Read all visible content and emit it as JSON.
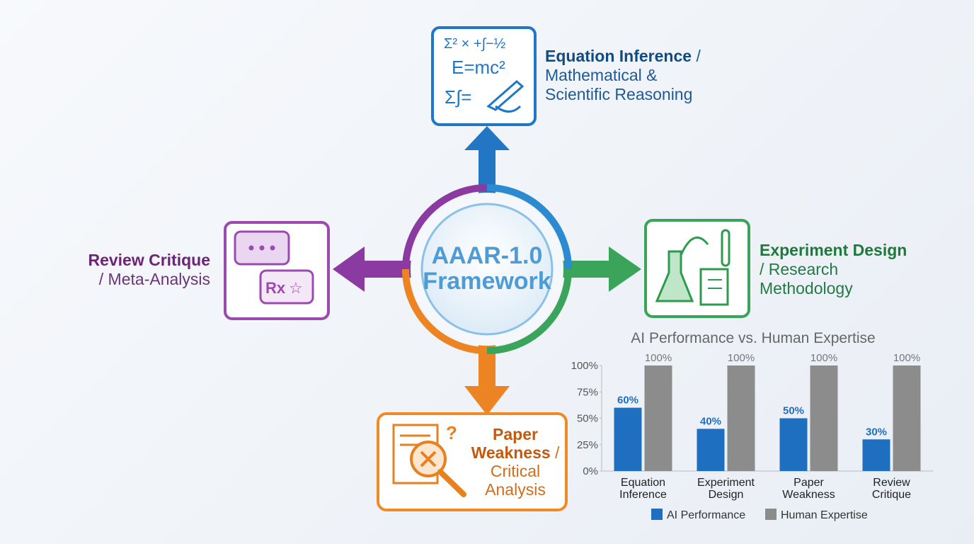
{
  "center": {
    "lines": [
      "AAAR-1.0",
      "Framework"
    ]
  },
  "nodes": [
    {
      "title": "Equation Inference",
      "subtitle": "/ Mathematical & Scientific Reasoning",
      "icon_text": "E=mc²"
    },
    {
      "title": "Experiment Design",
      "subtitle": "/ Research Methodology"
    },
    {
      "title": "Review Critique",
      "subtitle": "/ Meta-Analysis",
      "icon_text": "Rx"
    },
    {
      "title": "Paper Weakness",
      "subtitle": "/ Critical Analysis"
    }
  ],
  "chart_data": {
    "type": "bar",
    "title": "AI Performance vs. Human Expertise",
    "categories": [
      "Equation Inference",
      "Experiment Design",
      "Paper Weakness",
      "Review Critique"
    ],
    "series": [
      {
        "name": "AI Performance",
        "color": "#1f6fc0",
        "values": [
          60,
          40,
          50,
          30
        ],
        "value_labels": [
          "60%",
          "40%",
          "50%",
          "30%"
        ]
      },
      {
        "name": "Human Expertise",
        "color": "#8c8c8c",
        "values": [
          100,
          100,
          100,
          100
        ],
        "value_labels": [
          "100%",
          "100%",
          "100%",
          "100%"
        ]
      }
    ],
    "ylim": [
      0,
      100
    ],
    "yticks": [
      {
        "value": 0,
        "label": "0%"
      },
      {
        "value": 25,
        "label": "25%"
      },
      {
        "value": 50,
        "label": "50%"
      },
      {
        "value": 75,
        "label": "75%"
      },
      {
        "value": 100,
        "label": "100%"
      }
    ],
    "grid": false,
    "legend": "bottom"
  }
}
